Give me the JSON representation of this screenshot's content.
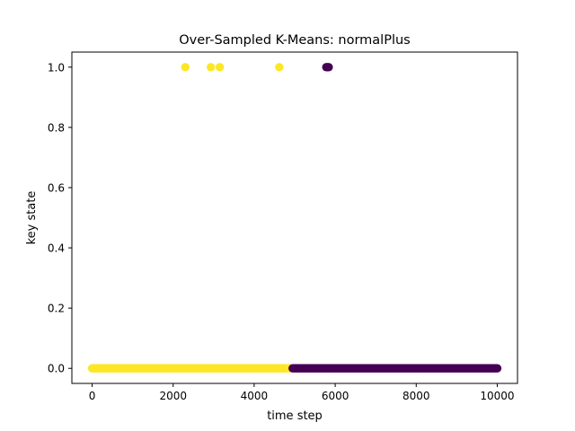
{
  "chart_data": {
    "type": "scatter",
    "title": "Over-Sampled K-Means: normalPlus",
    "xlabel": "time step",
    "ylabel": "key state",
    "xlim": [
      -500,
      10500
    ],
    "ylim": [
      -0.05,
      1.05
    ],
    "xticks": [
      0,
      2000,
      4000,
      6000,
      8000,
      10000
    ],
    "yticks": [
      0.0,
      0.2,
      0.4,
      0.6,
      0.8,
      1.0
    ],
    "xtick_labels": [
      "0",
      "2000",
      "4000",
      "6000",
      "8000",
      "10000"
    ],
    "ytick_labels": [
      "0.0",
      "0.2",
      "0.4",
      "0.6",
      "0.8",
      "1.0"
    ],
    "grid": false,
    "colors": {
      "cluster_yellow": "#fde725",
      "cluster_purple": "#440154"
    },
    "clusters": [
      {
        "color_key": "cluster_yellow",
        "segments": [
          {
            "x_start": 0,
            "x_end": 4900,
            "y": 0.0
          }
        ],
        "points": [
          {
            "x": 2300,
            "y": 1.0
          },
          {
            "x": 2930,
            "y": 1.0
          },
          {
            "x": 3150,
            "y": 1.0
          },
          {
            "x": 4620,
            "y": 1.0
          }
        ]
      },
      {
        "color_key": "cluster_purple",
        "segments": [
          {
            "x_start": 4950,
            "x_end": 10000,
            "y": 0.0
          }
        ],
        "points": [
          {
            "x": 5780,
            "y": 1.0
          },
          {
            "x": 5810,
            "y": 1.0
          },
          {
            "x": 5840,
            "y": 1.0
          }
        ]
      }
    ]
  }
}
